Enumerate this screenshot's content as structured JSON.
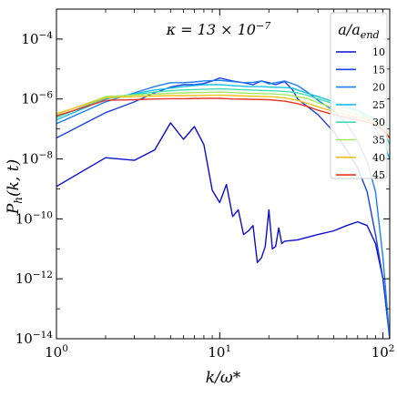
{
  "chart_data": {
    "type": "line",
    "xlabel": "k/ω*",
    "ylabel": "P_h(k, t)",
    "xscale": "log",
    "yscale": "log",
    "xlim": [
      1,
      110
    ],
    "ylim": [
      1e-14,
      0.001
    ],
    "x_ticks": [
      1,
      10,
      100
    ],
    "x_tick_labels": [
      "10^0",
      "10^1",
      "10^2"
    ],
    "y_ticks": [
      1e-14,
      1e-12,
      1e-10,
      1e-08,
      1e-06,
      0.0001
    ],
    "y_tick_labels": [
      "10^-14",
      "10^-12",
      "10^-10",
      "10^-8",
      "10^-6",
      "10^-4"
    ],
    "grid": false,
    "annotation": "κ = 13 × 10^-7",
    "legend": {
      "title": "a/a_end",
      "placement": "top-right"
    },
    "series": [
      {
        "name": "10",
        "color": "#0c0ccf",
        "x": [
          1,
          2,
          3,
          4,
          5,
          6,
          7,
          8,
          9,
          10,
          11,
          12,
          13,
          14,
          15,
          16,
          17,
          18,
          19,
          20,
          21,
          22,
          23,
          24,
          25,
          30,
          40,
          50,
          60,
          70,
          80,
          90,
          100,
          110
        ],
        "y": [
          1.2e-09,
          1.1e-08,
          9e-09,
          2e-08,
          1.6e-07,
          4.5e-08,
          1.2e-07,
          3e-08,
          9e-10,
          3.5e-10,
          1.4e-09,
          1.2e-10,
          2e-10,
          3e-11,
          4e-11,
          6e-11,
          3.5e-12,
          5e-12,
          1.2e-11,
          2e-10,
          1e-11,
          1.2e-11,
          5e-11,
          1.5e-11,
          1.8e-11,
          2e-11,
          3e-11,
          4e-11,
          6e-11,
          8e-11,
          6e-11,
          1.5e-11,
          1e-12,
          1e-14
        ]
      },
      {
        "name": "15",
        "color": "#1a3fe6",
        "x": [
          1,
          2,
          3,
          4,
          5,
          6,
          7,
          8,
          9,
          10,
          12,
          14,
          16,
          18,
          20,
          22,
          25,
          28,
          30,
          40,
          50,
          60,
          70,
          80,
          90,
          100,
          110
        ],
        "y": [
          5e-08,
          3.5e-07,
          8e-07,
          1.6e-06,
          2.5e-06,
          3e-06,
          3e-06,
          3.3e-06,
          4e-06,
          5e-06,
          4e-06,
          3.5e-06,
          3e-06,
          4e-06,
          3.5e-06,
          3e-06,
          3.8e-06,
          2e-06,
          1e-06,
          3e-07,
          8e-08,
          2e-08,
          5e-09,
          8e-10,
          3e-11,
          1e-12,
          1e-14
        ]
      },
      {
        "name": "20",
        "color": "#1e7ff0",
        "x": [
          1,
          2,
          3,
          4,
          5,
          6,
          7,
          8,
          10,
          12,
          14,
          16,
          18,
          20,
          22,
          25,
          28,
          30,
          35,
          40,
          50,
          60,
          70,
          80,
          90,
          100,
          110
        ],
        "y": [
          1.5e-07,
          8e-07,
          1.6e-06,
          2.6e-06,
          3.5e-06,
          3.5e-06,
          3.7e-06,
          4e-06,
          4.2e-06,
          3.8e-06,
          3.5e-06,
          3.6e-06,
          4e-06,
          3.2e-06,
          3.5e-06,
          4e-06,
          3.2e-06,
          2.8e-06,
          1.6e-06,
          9e-07,
          4e-07,
          1.5e-07,
          4e-08,
          8e-09,
          8e-10,
          5e-12,
          1e-14
        ]
      },
      {
        "name": "25",
        "color": "#18c0e8",
        "x": [
          1,
          2,
          3,
          4,
          5,
          6,
          7,
          8,
          10,
          12,
          15,
          18,
          20,
          25,
          28,
          30,
          35,
          40,
          50,
          60,
          70,
          80,
          90,
          100,
          110
        ],
        "y": [
          2e-07,
          1e-06,
          1.5e-06,
          2e-06,
          2.3e-06,
          2.6e-06,
          2.8e-06,
          3e-06,
          3e-06,
          2.8e-06,
          2.6e-06,
          2.6e-06,
          2.5e-06,
          2.4e-06,
          2.3e-06,
          2e-06,
          1.5e-06,
          1.2e-06,
          8e-07,
          6e-07,
          4e-07,
          2.5e-07,
          1e-07,
          4e-08,
          1e-08
        ]
      },
      {
        "name": "30",
        "color": "#40ddb0",
        "x": [
          1,
          2,
          3,
          4,
          5,
          6,
          8,
          10,
          12,
          15,
          20,
          25,
          30,
          35,
          40,
          50,
          60,
          70,
          80,
          90,
          100,
          110
        ],
        "y": [
          2.4e-07,
          1.1e-06,
          1.4e-06,
          1.7e-06,
          1.9e-06,
          2e-06,
          2.1e-06,
          2.2e-06,
          2.1e-06,
          2e-06,
          1.9e-06,
          1.8e-06,
          1.6e-06,
          1.3e-06,
          1e-06,
          7e-07,
          5e-07,
          4e-07,
          3e-07,
          2e-07,
          1e-07,
          3e-08
        ]
      },
      {
        "name": "35",
        "color": "#a8e860",
        "x": [
          1,
          2,
          3,
          4,
          5,
          6,
          8,
          10,
          12,
          15,
          20,
          25,
          30,
          35,
          40,
          50,
          60,
          70,
          80,
          90,
          100,
          110
        ],
        "y": [
          3e-07,
          1.2e-06,
          1.35e-06,
          1.45e-06,
          1.55e-06,
          1.6e-06,
          1.65e-06,
          1.7e-06,
          1.65e-06,
          1.55e-06,
          1.5e-06,
          1.4e-06,
          1.2e-06,
          1e-06,
          7.5e-07,
          5e-07,
          3.8e-07,
          3e-07,
          2.4e-07,
          1.8e-07,
          1.2e-07,
          5e-08
        ]
      },
      {
        "name": "40",
        "color": "#f2c21c",
        "x": [
          1,
          2,
          3,
          4,
          5,
          6,
          8,
          10,
          12,
          15,
          20,
          25,
          30,
          35,
          40,
          50,
          60,
          70,
          80,
          90,
          100,
          110
        ],
        "y": [
          3.2e-07,
          1.1e-06,
          1.2e-06,
          1.25e-06,
          1.3e-06,
          1.3e-06,
          1.32e-06,
          1.35e-06,
          1.3e-06,
          1.25e-06,
          1.2e-06,
          1.1e-06,
          9e-07,
          7e-07,
          5.5e-07,
          3.8e-07,
          3e-07,
          2.4e-07,
          2e-07,
          1.5e-07,
          1e-07,
          5e-08
        ]
      },
      {
        "name": "45",
        "color": "#e63524",
        "x": [
          1,
          2,
          3,
          4,
          5,
          6,
          8,
          10,
          12,
          15,
          20,
          25,
          30,
          35,
          40,
          50,
          60,
          70,
          80,
          90,
          100,
          110
        ],
        "y": [
          2.7e-07,
          9e-07,
          9.5e-07,
          1e-06,
          1.02e-06,
          1.02e-06,
          1.05e-06,
          1.05e-06,
          1e-06,
          9.8e-07,
          9.5e-07,
          8.5e-07,
          7e-07,
          5.5e-07,
          4.2e-07,
          3e-07,
          2.4e-07,
          2e-07,
          1.7e-07,
          1.3e-07,
          9e-08,
          5e-08
        ]
      }
    ]
  }
}
